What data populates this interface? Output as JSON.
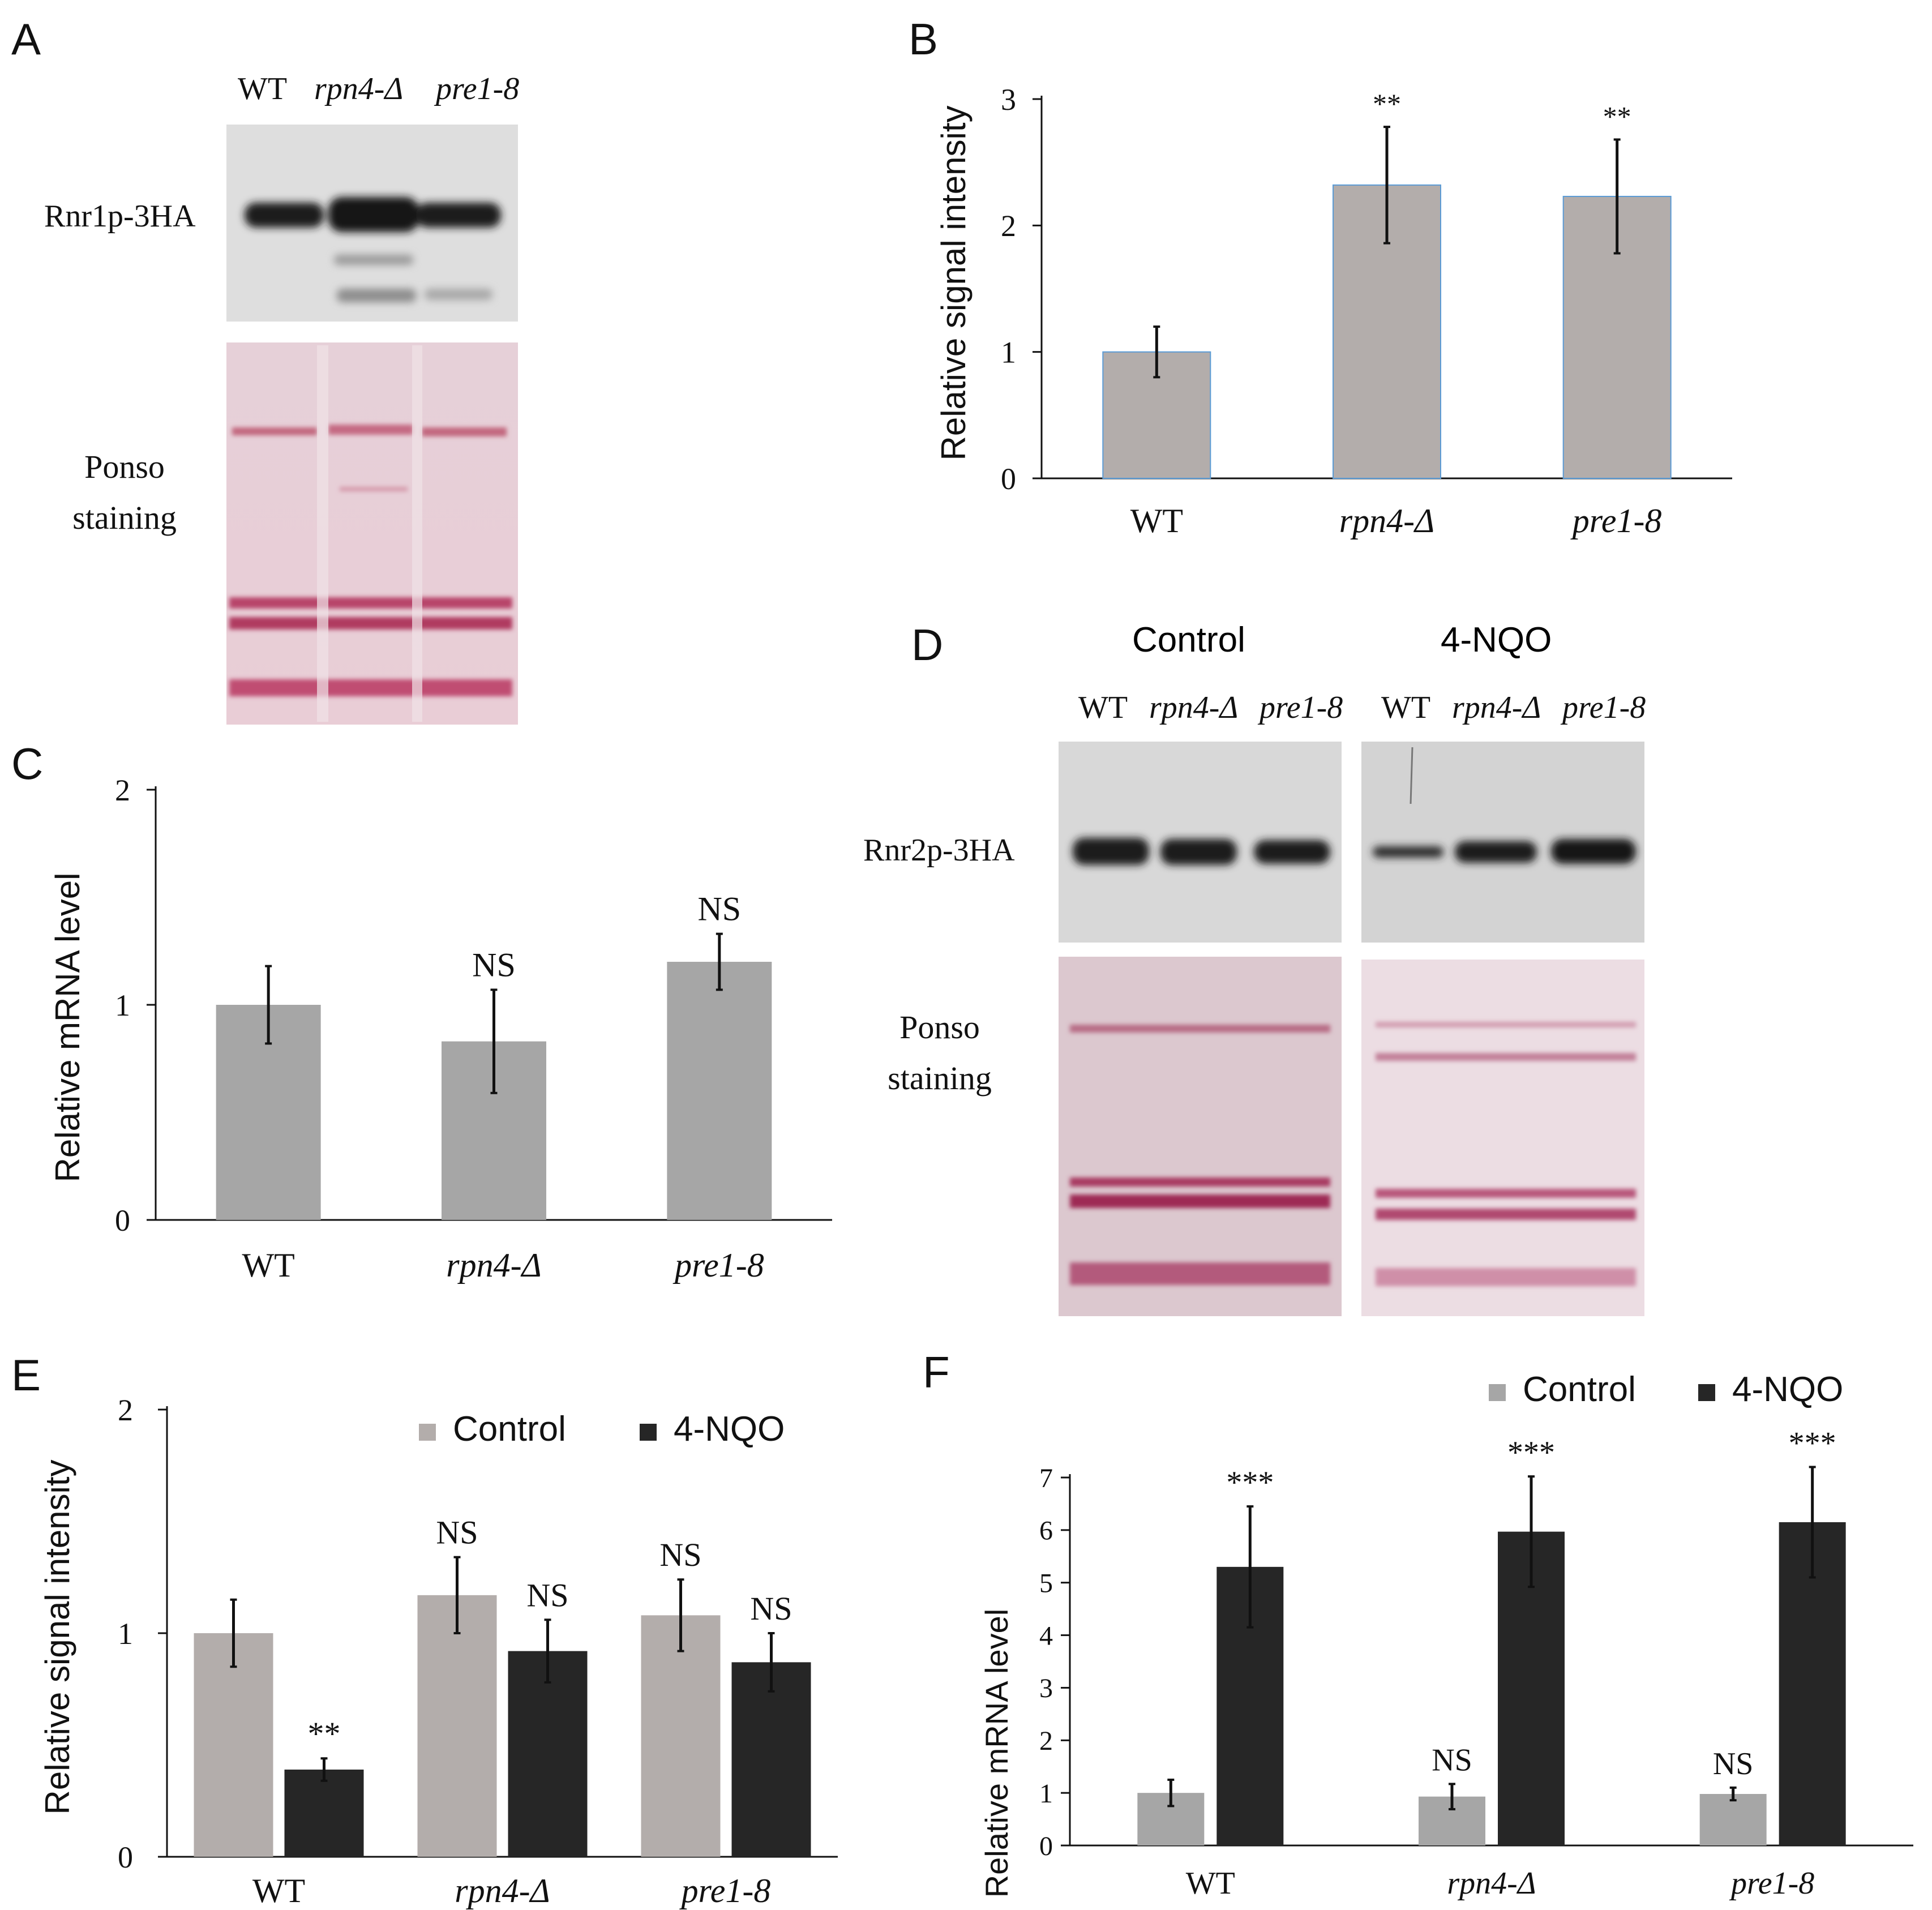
{
  "panels": {
    "A": {
      "letter": "A",
      "lanes": [
        "WT",
        "rpn4-Δ",
        "pre1-8"
      ],
      "band_label": "Rnr1p-3HA",
      "stain_label": [
        "Ponso",
        "staining"
      ]
    },
    "D": {
      "letter": "D",
      "group_control": "Control",
      "group_treat": "4-NQO",
      "lanes_control": [
        "WT",
        "rpn4-Δ",
        "pre1-8"
      ],
      "lanes_treat": [
        "WT",
        "rpn4-Δ",
        "pre1-8"
      ],
      "band_label": "Rnr2p-3HA",
      "stain_label": [
        "Ponso",
        "staining"
      ],
      "band_intensity": {
        "control": [
          1.0,
          1.0,
          0.95
        ],
        "treat": [
          0.45,
          0.85,
          0.95
        ]
      }
    }
  },
  "chart_data": [
    {
      "id": "B",
      "letter": "B",
      "type": "bar",
      "categories": [
        "WT",
        "rpn4-Δ",
        "pre1-8"
      ],
      "values": [
        1.0,
        2.32,
        2.23
      ],
      "errors": [
        0.2,
        0.46,
        0.45
      ],
      "annotations": [
        "",
        "**",
        "**"
      ],
      "ylabel": "Relative signal intensity",
      "ylim": [
        0,
        3
      ],
      "yticks": [
        0,
        1,
        2,
        3
      ],
      "bar_color": "#b3adab",
      "bar_edge": "#5b9bd5",
      "grid": false
    },
    {
      "id": "C",
      "letter": "C",
      "type": "bar",
      "categories": [
        "WT",
        "rpn4-Δ",
        "pre1-8"
      ],
      "values": [
        1.0,
        0.83,
        1.2
      ],
      "errors": [
        0.18,
        0.24,
        0.13
      ],
      "annotations": [
        "",
        "NS",
        "NS"
      ],
      "ylabel": "Relative mRNA level",
      "ylim": [
        0,
        2
      ],
      "yticks": [
        0,
        1,
        2
      ],
      "bar_color": "#a6a6a6",
      "grid": false
    },
    {
      "id": "E",
      "letter": "E",
      "type": "bar",
      "categories": [
        "WT",
        "rpn4-Δ",
        "pre1-8"
      ],
      "series": [
        {
          "name": "Control",
          "values": [
            1.0,
            1.17,
            1.08
          ],
          "errors": [
            0.15,
            0.17,
            0.16
          ],
          "annotations": [
            "",
            "NS",
            "NS"
          ],
          "color": "#b3adab"
        },
        {
          "name": "4-NQO",
          "values": [
            0.39,
            0.92,
            0.87
          ],
          "errors": [
            0.05,
            0.14,
            0.13
          ],
          "annotations": [
            "**",
            "NS",
            "NS"
          ],
          "color": "#262626"
        }
      ],
      "ylabel": "Relative signal intensity",
      "ylim": [
        0,
        2
      ],
      "yticks": [
        0,
        1,
        2
      ],
      "legend": "top-right",
      "grid": false
    },
    {
      "id": "F",
      "letter": "F",
      "type": "bar",
      "categories": [
        "WT",
        "rpn4-Δ",
        "pre1-8"
      ],
      "series": [
        {
          "name": "Control",
          "values": [
            1.0,
            0.93,
            0.98
          ],
          "errors": [
            0.25,
            0.24,
            0.12
          ],
          "annotations": [
            "",
            "NS",
            "NS"
          ],
          "color": "#a6a6a6"
        },
        {
          "name": "4-NQO",
          "values": [
            5.3,
            5.97,
            6.15
          ],
          "errors": [
            1.15,
            1.05,
            1.05
          ],
          "annotations": [
            "***",
            "***",
            "***"
          ],
          "color": "#262626"
        }
      ],
      "ylabel": "Relative mRNA level",
      "ylim": [
        0,
        7
      ],
      "yticks": [
        0,
        1,
        2,
        3,
        4,
        5,
        6,
        7
      ],
      "legend": "top-right",
      "grid": false
    }
  ]
}
